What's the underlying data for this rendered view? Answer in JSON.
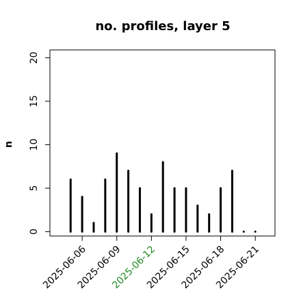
{
  "chart_data": {
    "type": "needle",
    "title": "no. profiles, layer 5",
    "y_label": "n",
    "x": [
      "2025-06-05",
      "2025-06-06",
      "2025-06-07",
      "2025-06-08",
      "2025-06-09",
      "2025-06-10",
      "2025-06-11",
      "2025-06-12",
      "2025-06-13",
      "2025-06-14",
      "2025-06-15",
      "2025-06-16",
      "2025-06-17",
      "2025-06-18",
      "2025-06-19",
      "2025-06-20",
      "2025-06-21"
    ],
    "values": [
      6,
      4,
      1,
      6,
      9,
      7,
      5,
      2,
      8,
      5,
      5,
      3,
      2,
      5,
      7,
      0,
      0
    ],
    "color": "#000000",
    "xlim": [
      "2025-06-03T05:00Z",
      "2025-06-22T17:00Z"
    ],
    "xticks": [
      "2025-06-06",
      "2025-06-09",
      "2025-06-12",
      "2025-06-15",
      "2025-06-18",
      "2025-06-21"
    ],
    "xtick_label_colors": [
      "#000000",
      "#000000",
      "#228b22",
      "#000000",
      "#000000",
      "#000000"
    ],
    "ylim": [
      -0.5,
      20.9
    ],
    "yticks": [
      0,
      5,
      10,
      15,
      20
    ]
  }
}
